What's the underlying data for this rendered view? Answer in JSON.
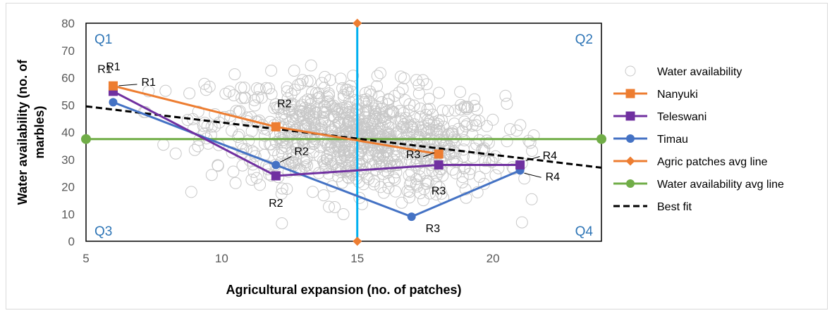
{
  "chart_data": {
    "type": "scatter",
    "xlabel": "Agricultural expansion (no. of patches)",
    "ylabel": "Water availability (no. of marbles)",
    "xlim": [
      5,
      24
    ],
    "ylim": [
      0,
      80
    ],
    "x_ticks": [
      "5",
      "10",
      "15",
      "20"
    ],
    "y_ticks": [
      "0",
      "10",
      "20",
      "30",
      "40",
      "50",
      "60",
      "70",
      "80"
    ],
    "grid": false,
    "legend_position": "right",
    "quadrant_labels": [
      "Q1",
      "Q2",
      "Q3",
      "Q4"
    ],
    "scatter": {
      "name": "Water availability",
      "color": "#c8c8c8",
      "x_mean": 15,
      "y_mean": 38,
      "x_range": [
        6,
        22
      ],
      "y_range": [
        5,
        65
      ]
    },
    "series": [
      {
        "name": "Nanyuki",
        "color": "#ed7d31",
        "marker": "square",
        "points": [
          {
            "x": 6,
            "y": 57,
            "label": "R1"
          },
          {
            "x": 12,
            "y": 42,
            "label": "R2"
          },
          {
            "x": 18,
            "y": 32,
            "label": "R3"
          }
        ]
      },
      {
        "name": "Teleswani",
        "color": "#7030a0",
        "marker": "square",
        "points": [
          {
            "x": 6,
            "y": 55,
            "label": "R1"
          },
          {
            "x": 12,
            "y": 24,
            "label": "R2"
          },
          {
            "x": 18,
            "y": 28,
            "label": "R3"
          },
          {
            "x": 21,
            "y": 28,
            "label": "R4"
          }
        ]
      },
      {
        "name": "Timau",
        "color": "#4472c4",
        "marker": "circle",
        "points": [
          {
            "x": 6,
            "y": 51,
            "label": "R1"
          },
          {
            "x": 12,
            "y": 28,
            "label": "R2"
          },
          {
            "x": 17,
            "y": 9,
            "label": "R3"
          },
          {
            "x": 21,
            "y": 26,
            "label": "R4"
          }
        ]
      },
      {
        "name": "Agric patches avg line",
        "color": "#ed7d31",
        "line_color": "#00b0f0",
        "marker": "diamond",
        "points": [
          {
            "x": 15,
            "y": 0
          },
          {
            "x": 15,
            "y": 80
          }
        ]
      },
      {
        "name": "Water availability avg line",
        "color": "#70ad47",
        "marker": "circle",
        "points": [
          {
            "x": 5,
            "y": 37.5
          },
          {
            "x": 24,
            "y": 37.5
          }
        ]
      },
      {
        "name": "Best fit",
        "color": "#000000",
        "marker": "none",
        "dash": true,
        "points": [
          {
            "x": 5,
            "y": 49.5
          },
          {
            "x": 24,
            "y": 27
          }
        ]
      }
    ]
  }
}
